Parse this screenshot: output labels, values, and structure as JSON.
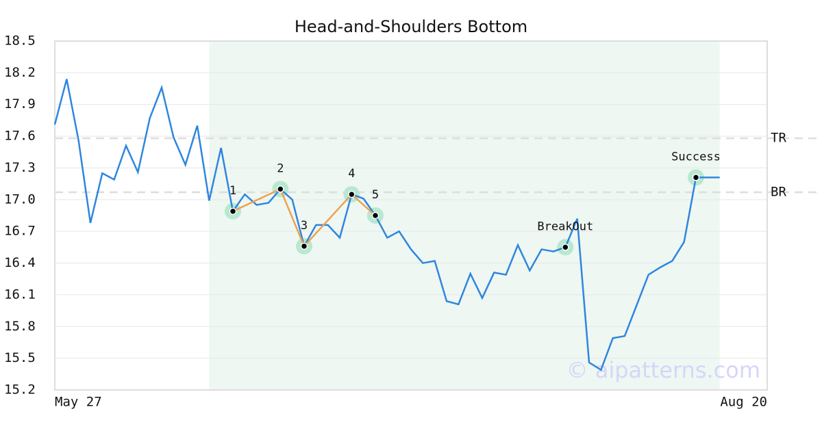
{
  "chart_data": {
    "type": "line",
    "title": "Head-and-Shoulders Bottom",
    "categories": [
      "May 27",
      null,
      null,
      null,
      null,
      null,
      null,
      null,
      null,
      null,
      null,
      null,
      null,
      null,
      null,
      null,
      null,
      null,
      null,
      null,
      null,
      null,
      null,
      null,
      null,
      null,
      null,
      null,
      null,
      null,
      null,
      null,
      null,
      null,
      null,
      null,
      null,
      null,
      null,
      null,
      null,
      null,
      null,
      null,
      null,
      null,
      null,
      null,
      null,
      null,
      null,
      null,
      null,
      null,
      null,
      null,
      "Aug 20"
    ],
    "series": [
      {
        "color": "#2e86de",
        "values": [
          17.71,
          18.14,
          17.56,
          16.78,
          17.25,
          17.19,
          17.51,
          17.26,
          17.77,
          18.06,
          17.59,
          17.33,
          17.7,
          16.99,
          17.49,
          16.89,
          17.05,
          16.95,
          16.97,
          17.1,
          17.0,
          16.56,
          16.76,
          16.76,
          16.64,
          17.05,
          17.01,
          16.85,
          16.64,
          16.7,
          16.53,
          16.4,
          16.42,
          16.04,
          16.01,
          16.3,
          16.07,
          16.31,
          16.29,
          16.57,
          16.33,
          16.53,
          16.51,
          16.55,
          16.82,
          15.46,
          15.39,
          15.69,
          15.71,
          16.0,
          16.29,
          16.36,
          16.42,
          16.6,
          17.21,
          17.21,
          17.21
        ]
      }
    ],
    "xlim": [
      0,
      60
    ],
    "ylim": [
      15.2,
      18.5
    ],
    "yticks": [
      15.2,
      15.5,
      15.8,
      16.1,
      16.4,
      16.7,
      {
        "value": 17.0,
        "label": "17.0"
      },
      17.3,
      17.6,
      17.9,
      18.2,
      18.5
    ],
    "grid": true,
    "pattern_span": [
      13,
      56
    ],
    "pattern_color": "#eef7f2",
    "reference_lines": [
      {
        "label": "TR",
        "value": 17.58
      },
      {
        "label": "BR",
        "value": 17.07
      }
    ],
    "pattern_points": [
      {
        "label": "1",
        "x": 15,
        "value": 16.89
      },
      {
        "label": "2",
        "x": 19,
        "value": 17.1
      },
      {
        "label": "3",
        "x": 21,
        "value": 16.56
      },
      {
        "label": "4",
        "x": 25,
        "value": 17.05
      },
      {
        "label": "5",
        "x": 27,
        "value": 16.85
      }
    ],
    "pattern_line_color": "#f0a050",
    "events": [
      {
        "label": "BreakOut",
        "x": 43,
        "value": 16.55
      },
      {
        "label": "Success",
        "x": 54,
        "value": 17.21
      }
    ],
    "watermark": "© aipatterns.com"
  }
}
